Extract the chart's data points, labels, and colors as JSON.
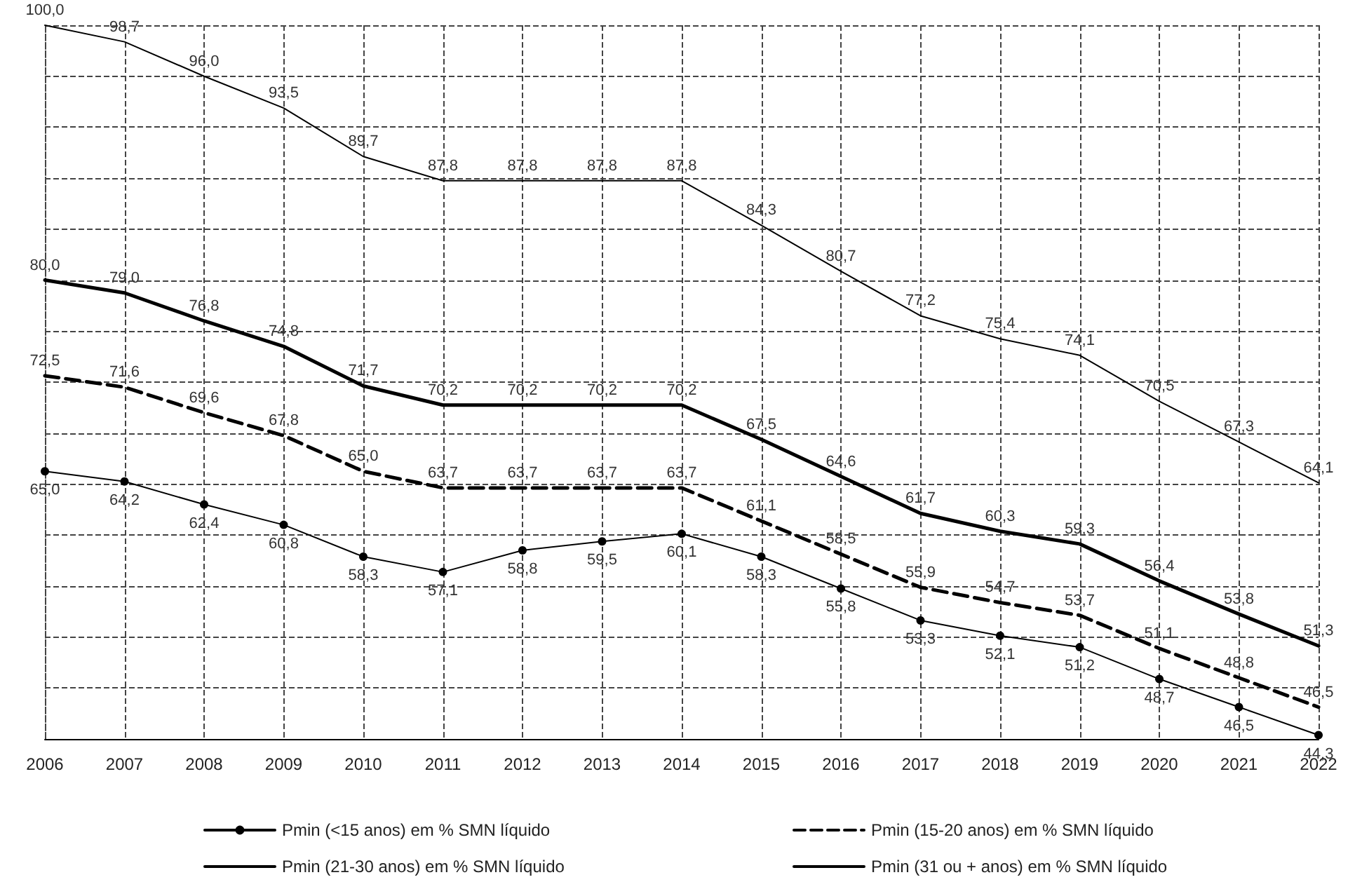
{
  "chart_data": {
    "type": "line",
    "categories": [
      "2006",
      "2007",
      "2008",
      "2009",
      "2010",
      "2011",
      "2012",
      "2013",
      "2014",
      "2015",
      "2016",
      "2017",
      "2018",
      "2019",
      "2020",
      "2021",
      "2022"
    ],
    "ylim": [
      44,
      100
    ],
    "yticks": [
      {
        "value": 44,
        "label": null
      },
      {
        "value": 48,
        "label": null
      },
      {
        "value": 52,
        "label": null
      },
      {
        "value": 56,
        "label": null
      },
      {
        "value": 60,
        "label": null
      },
      {
        "value": 64,
        "label": null
      },
      {
        "value": 68,
        "label": null
      },
      {
        "value": 72,
        "label": null
      },
      {
        "value": 76,
        "label": null
      },
      {
        "value": 80,
        "label": null
      },
      {
        "value": 84,
        "label": null
      },
      {
        "value": 88,
        "label": null
      },
      {
        "value": 92,
        "label": null
      },
      {
        "value": 96,
        "label": null
      },
      {
        "value": 100,
        "label": null
      }
    ],
    "tick_labels": "x",
    "grid": true,
    "legend": "bottom",
    "series": [
      {
        "name": "Pmin (<15 anos) em % SMN líquido",
        "color": "#000000",
        "marker": "circle",
        "line_style": "solid",
        "values": [
          65.0,
          64.2,
          62.4,
          60.8,
          58.3,
          57.1,
          58.8,
          59.5,
          60.1,
          58.3,
          55.8,
          53.3,
          52.1,
          51.2,
          48.7,
          46.5,
          44.3
        ],
        "value_labels": [
          "65,0",
          "64,2",
          "62,4",
          "60,8",
          "58,3",
          "57,1",
          "58,8",
          "59,5",
          "60,1",
          "58,3",
          "55,8",
          "53,3",
          "52,1",
          "51,2",
          "48,7",
          "46,5",
          "44,3"
        ]
      },
      {
        "name": "Pmin (15-20 anos) em % SMN líquido",
        "color": "#000000",
        "marker": "none",
        "line_style": "dashed",
        "values": [
          72.5,
          71.6,
          69.6,
          67.8,
          65.0,
          63.7,
          63.7,
          63.7,
          63.7,
          61.1,
          58.5,
          55.9,
          54.7,
          53.7,
          51.1,
          48.8,
          46.5
        ],
        "value_labels": [
          "72,5",
          "71,6",
          "69,6",
          "67,8",
          "65,0",
          "63,7",
          "63,7",
          "63,7",
          "63,7",
          "61,1",
          "58,5",
          "55,9",
          "54,7",
          "53,7",
          "51,1",
          "48,8",
          "46,5"
        ]
      },
      {
        "name": "Pmin (21-30 anos) em % SMN líquido",
        "color": "#000000",
        "marker": "none",
        "line_style": "solid",
        "values": [
          80.0,
          79.0,
          76.8,
          74.8,
          71.7,
          70.2,
          70.2,
          70.2,
          70.2,
          67.5,
          64.6,
          61.7,
          60.3,
          59.3,
          56.4,
          53.8,
          51.3
        ],
        "value_labels": [
          "80,0",
          "79,0",
          "76,8",
          "74,8",
          "71,7",
          "70,2",
          "70,2",
          "70,2",
          "70,2",
          "67,5",
          "64,6",
          "61,7",
          "60,3",
          "59,3",
          "56,4",
          "53,8",
          "51,3"
        ]
      },
      {
        "name": "Pmin (31 ou + anos) em % SMN líquido",
        "color": "#000000",
        "marker": "none",
        "line_style": "solid",
        "values": [
          100.0,
          98.7,
          96.0,
          93.5,
          89.7,
          87.8,
          87.8,
          87.8,
          87.8,
          84.3,
          80.7,
          77.2,
          75.4,
          74.1,
          70.5,
          67.3,
          64.1
        ],
        "value_labels": [
          "100,0",
          "98,7",
          "96,0",
          "93,5",
          "89,7",
          "87,8",
          "87,8",
          "87,8",
          "87,8",
          "84,3",
          "80,7",
          "77,2",
          "75,4",
          "74,1",
          "70,5",
          "67,3",
          "64,1"
        ]
      }
    ]
  }
}
